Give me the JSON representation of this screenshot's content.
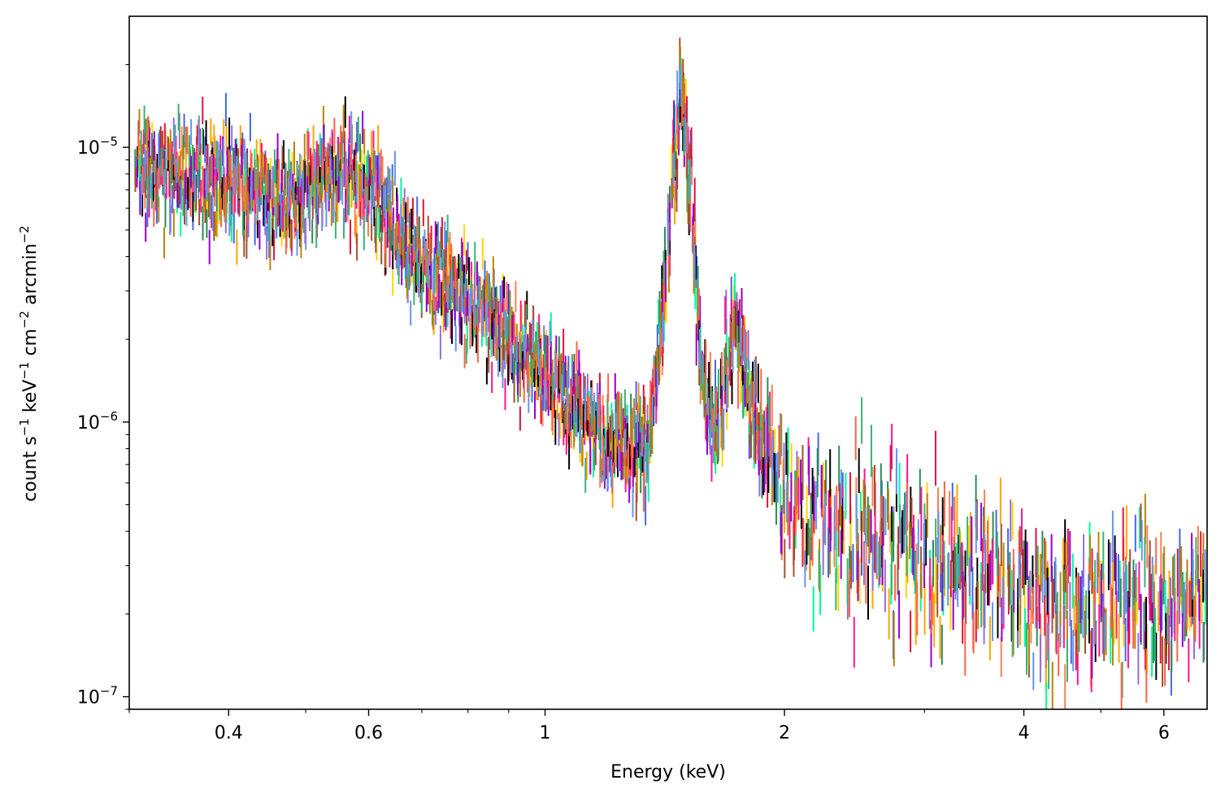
{
  "chart_data": {
    "type": "errorbar",
    "title": "",
    "xlabel": "Energy (keV)",
    "ylabel_parts": [
      "count s",
      "−1",
      " keV",
      "−1",
      " cm",
      "−2",
      " arcmin",
      "−2"
    ],
    "xscale": "log",
    "yscale": "log",
    "xlim": [
      0.3,
      6.8
    ],
    "ylim": [
      9e-08,
      3e-05
    ],
    "x_ticks": [
      {
        "value": 0.4,
        "label": "0.4"
      },
      {
        "value": 0.6,
        "label": "0.6"
      },
      {
        "value": 1,
        "label": "1"
      },
      {
        "value": 2,
        "label": "2"
      },
      {
        "value": 4,
        "label": "4"
      },
      {
        "value": 6,
        "label": "6"
      }
    ],
    "y_ticks": [
      {
        "value": 1e-05,
        "base": "10",
        "exp": "−5"
      },
      {
        "value": 1e-06,
        "base": "10",
        "exp": "−6"
      },
      {
        "value": 1e-07,
        "base": "10",
        "exp": "−7"
      }
    ],
    "grid": false,
    "legend": "none",
    "colors": [
      "#ff7f50",
      "#ffa500",
      "#ffd700",
      "#00fa9a",
      "#4169e1",
      "#9370db",
      "#2e8b57",
      "#ff1493",
      "#dc143c",
      "#000000",
      "#a0522d",
      "#b8860b",
      "#9400d3",
      "#3cb371",
      "#ff6347",
      "#6495ed"
    ],
    "spectrum_shape": [
      {
        "energy": 0.3,
        "value": 8.5e-06
      },
      {
        "energy": 0.4,
        "value": 7.5e-06
      },
      {
        "energy": 0.48,
        "value": 6.5e-06
      },
      {
        "energy": 0.55,
        "value": 8.5e-06
      },
      {
        "energy": 0.6,
        "value": 7e-06
      },
      {
        "energy": 0.7,
        "value": 3.8e-06
      },
      {
        "energy": 0.85,
        "value": 2.5e-06
      },
      {
        "energy": 1.0,
        "value": 1.5e-06
      },
      {
        "energy": 1.2,
        "value": 8.5e-07
      },
      {
        "energy": 1.35,
        "value": 8e-07
      },
      {
        "energy": 1.42,
        "value": 3.5e-06
      },
      {
        "energy": 1.48,
        "value": 1.8e-05
      },
      {
        "energy": 1.53,
        "value": 6e-06
      },
      {
        "energy": 1.58,
        "value": 1.2e-06
      },
      {
        "energy": 1.65,
        "value": 1e-06
      },
      {
        "energy": 1.74,
        "value": 2.5e-06
      },
      {
        "energy": 1.8,
        "value": 1.2e-06
      },
      {
        "energy": 2.0,
        "value": 5e-07
      },
      {
        "energy": 3.0,
        "value": 3.3e-07
      },
      {
        "energy": 4.0,
        "value": 2.5e-07
      },
      {
        "energy": 5.0,
        "value": 2.2e-07
      },
      {
        "energy": 6.8,
        "value": 2.2e-07
      }
    ]
  }
}
